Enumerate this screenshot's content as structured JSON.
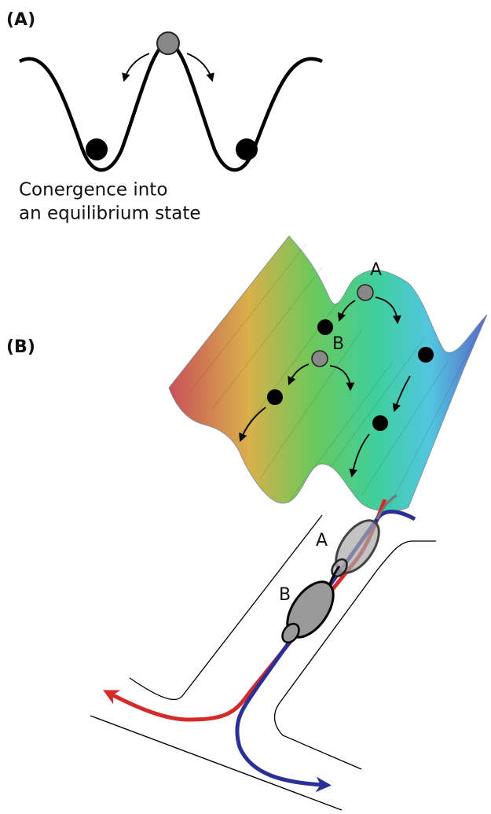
{
  "panel_a": {
    "label": "(A)",
    "caption": [
      "Conergence into",
      "an equilibrium state"
    ]
  },
  "panel_b": {
    "label": "(B)",
    "surface_labels": [
      "A",
      "B"
    ],
    "maze_labels": [
      "A",
      "B"
    ]
  }
}
